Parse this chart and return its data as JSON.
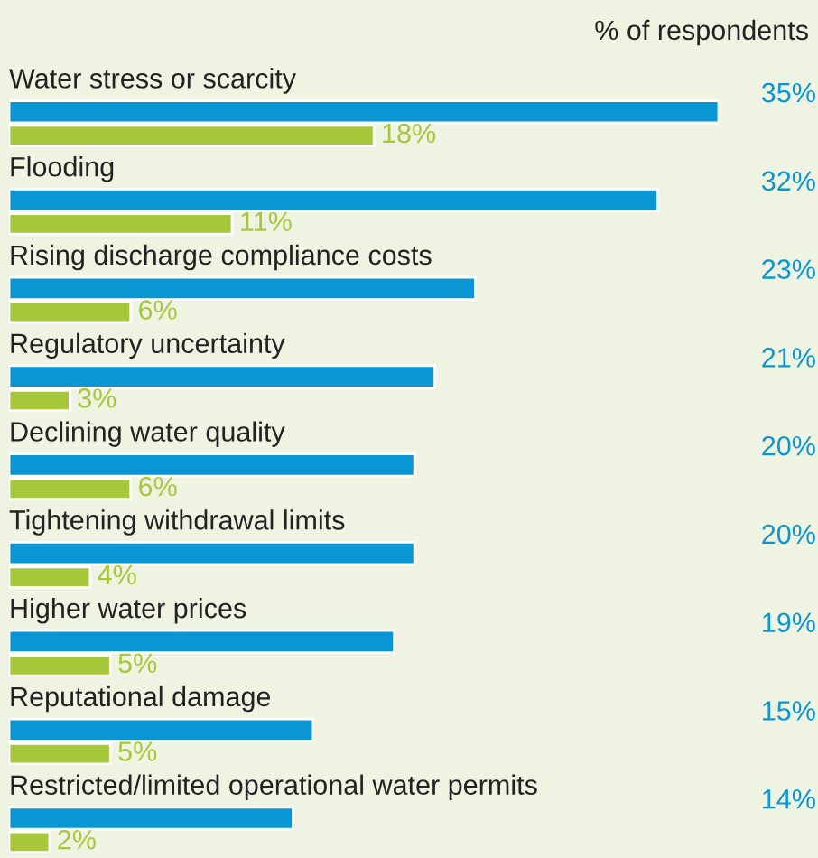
{
  "chart_data": {
    "type": "bar",
    "orientation": "horizontal",
    "xlabel": "% of respondents",
    "categories": [
      "Water stress or scarcity",
      "Flooding",
      "Rising discharge compliance costs",
      "Regulatory uncertainty",
      "Declining water quality",
      "Tightening withdrawal limits",
      "Higher water prices",
      "Reputational damage",
      "Restricted/limited operational water permits"
    ],
    "series": [
      {
        "color": "#0a96d2",
        "values": [
          35,
          32,
          23,
          21,
          20,
          20,
          19,
          15,
          14
        ],
        "value_labels": [
          "35%",
          "32%",
          "23%",
          "21%",
          "20%",
          "20%",
          "19%",
          "15%",
          "14%"
        ]
      },
      {
        "color": "#a6c83a",
        "values": [
          18,
          11,
          6,
          3,
          6,
          4,
          5,
          5,
          2
        ],
        "value_labels": [
          "18%",
          "11%",
          "6%",
          "3%",
          "6%",
          "4%",
          "5%",
          "5%",
          "2%"
        ]
      }
    ],
    "legend": false
  }
}
